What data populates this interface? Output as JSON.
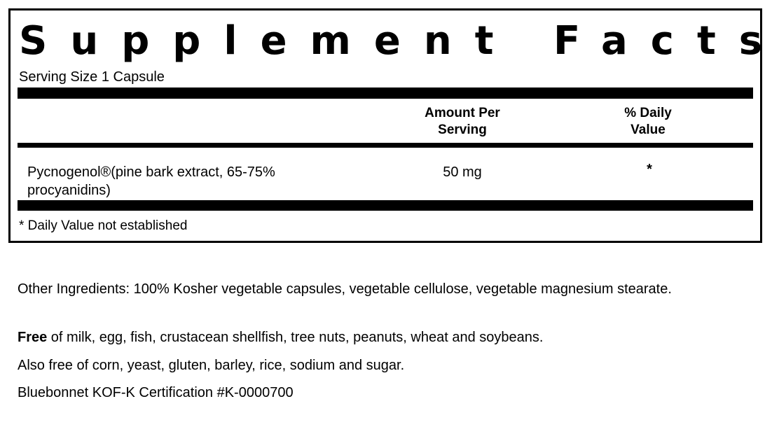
{
  "panel": {
    "title": "Supplement Facts",
    "serving_size": "Serving Size 1 Capsule",
    "headers": {
      "amount": "Amount Per Serving",
      "daily_value": "% Daily Value"
    },
    "rows": [
      {
        "ingredient": "Pycnogenol®(pine bark extract, 65-75% procyanidins)",
        "amount": "50 mg",
        "daily_value": "*"
      }
    ],
    "footnote": "* Daily Value not established"
  },
  "other_ingredients": "Other Ingredients: 100% Kosher vegetable capsules, vegetable cellulose, vegetable magnesium stearate.",
  "free_of": {
    "bold": "Free",
    "text": " of milk, egg, fish, crustacean shellfish, tree nuts, peanuts, wheat and soybeans."
  },
  "also_free": "Also free of corn, yeast, gluten, barley, rice, sodium and sugar.",
  "certification": "Bluebonnet KOF-K Certification #K-0000700"
}
